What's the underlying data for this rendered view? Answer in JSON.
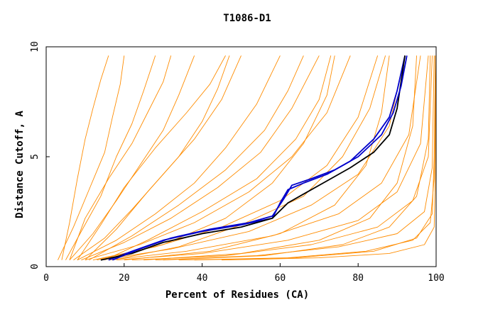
{
  "chart_data": {
    "type": "line",
    "title": "T1086-D1",
    "xlabel": "Percent of Residues (CA)",
    "ylabel": "Distance Cutoff, A",
    "xlim": [
      0,
      100
    ],
    "ylim": [
      0,
      10
    ],
    "x_ticks": [
      "0",
      "20",
      "40",
      "60",
      "80",
      "100"
    ],
    "y_ticks": [
      "0",
      "5",
      "10"
    ],
    "grid": false,
    "legend": "none",
    "colors": {
      "background_models": "#ff8c00",
      "highlight_blue": "#0000cc",
      "highlight_black": "#000000"
    },
    "series": [
      {
        "color": "#ff8c00",
        "x": [
          3,
          7,
          11,
          15,
          17,
          19,
          20
        ],
        "y": [
          0.3,
          1.8,
          3.5,
          5.2,
          6.8,
          8.3,
          9.6
        ]
      },
      {
        "color": "#ff8c00",
        "x": [
          5,
          9,
          14,
          18,
          22,
          25,
          28
        ],
        "y": [
          0.3,
          1.6,
          3.2,
          5.0,
          6.5,
          8.0,
          9.6
        ]
      },
      {
        "color": "#ff8c00",
        "x": [
          6,
          12,
          18,
          24,
          30,
          34,
          38
        ],
        "y": [
          0.3,
          1.5,
          3.0,
          4.6,
          6.2,
          7.8,
          9.6
        ]
      },
      {
        "color": "#ff8c00",
        "x": [
          7,
          15,
          22,
          30,
          38,
          45,
          50
        ],
        "y": [
          0.3,
          1.3,
          2.6,
          4.2,
          5.8,
          7.6,
          9.6
        ]
      },
      {
        "color": "#ff8c00",
        "x": [
          8,
          18,
          28,
          38,
          46,
          54,
          60
        ],
        "y": [
          0.3,
          1.2,
          2.4,
          3.8,
          5.4,
          7.4,
          9.6
        ]
      },
      {
        "color": "#ff8c00",
        "x": [
          9,
          20,
          32,
          44,
          55,
          63,
          70
        ],
        "y": [
          0.3,
          1.1,
          2.2,
          3.6,
          5.2,
          7.2,
          9.6
        ]
      },
      {
        "color": "#ff8c00",
        "x": [
          10,
          24,
          38,
          52,
          63,
          72,
          78
        ],
        "y": [
          0.3,
          1.0,
          2.0,
          3.4,
          5.0,
          7.0,
          9.6
        ]
      },
      {
        "color": "#ff8c00",
        "x": [
          12,
          28,
          45,
          60,
          72,
          80,
          85
        ],
        "y": [
          0.3,
          0.9,
          1.8,
          3.0,
          4.6,
          6.8,
          9.6
        ]
      },
      {
        "color": "#ff8c00",
        "x": [
          14,
          32,
          52,
          68,
          80,
          88,
          92
        ],
        "y": [
          0.3,
          0.8,
          1.6,
          2.8,
          4.2,
          6.4,
          9.6
        ]
      },
      {
        "color": "#ff8c00",
        "x": [
          16,
          36,
          58,
          75,
          86,
          93,
          96
        ],
        "y": [
          0.3,
          0.7,
          1.4,
          2.4,
          3.8,
          6.0,
          9.6
        ]
      },
      {
        "color": "#ff8c00",
        "x": [
          18,
          40,
          62,
          80,
          90,
          96,
          98
        ],
        "y": [
          0.3,
          0.6,
          1.2,
          2.1,
          3.4,
          5.6,
          9.6
        ]
      },
      {
        "color": "#ff8c00",
        "x": [
          22,
          46,
          68,
          85,
          94,
          98,
          99
        ],
        "y": [
          0.3,
          0.5,
          1.0,
          1.8,
          3.0,
          5.0,
          9.6
        ]
      },
      {
        "color": "#ff8c00",
        "x": [
          28,
          54,
          75,
          90,
          97,
          99,
          99.5
        ],
        "y": [
          0.3,
          0.5,
          0.9,
          1.5,
          2.5,
          4.5,
          9.6
        ]
      },
      {
        "color": "#ff8c00",
        "x": [
          34,
          62,
          82,
          94,
          98.5,
          99.5,
          100
        ],
        "y": [
          0.3,
          0.4,
          0.7,
          1.2,
          2.0,
          4.0,
          9.6
        ]
      },
      {
        "color": "#ff8c00",
        "x": [
          4,
          6,
          8,
          10,
          12,
          14,
          16
        ],
        "y": [
          0.3,
          2.0,
          4.0,
          5.8,
          7.2,
          8.5,
          9.6
        ]
      },
      {
        "color": "#ff8c00",
        "x": [
          6,
          10,
          16,
          22,
          26,
          30,
          32
        ],
        "y": [
          0.3,
          2.2,
          4.0,
          5.6,
          7.0,
          8.4,
          9.6
        ]
      },
      {
        "color": "#ff8c00",
        "x": [
          8,
          14,
          20,
          28,
          36,
          42,
          46
        ],
        "y": [
          0.3,
          1.9,
          3.6,
          5.4,
          7.0,
          8.3,
          9.6
        ]
      },
      {
        "color": "#ff8c00",
        "x": [
          11,
          22,
          34,
          46,
          56,
          62,
          66
        ],
        "y": [
          0.3,
          1.4,
          2.8,
          4.4,
          6.2,
          8.0,
          9.6
        ]
      },
      {
        "color": "#ff8c00",
        "x": [
          13,
          30,
          46,
          58,
          66,
          72,
          74
        ],
        "y": [
          0.3,
          1.0,
          2.2,
          3.8,
          5.6,
          7.8,
          9.6
        ]
      },
      {
        "color": "#ff8c00",
        "x": [
          20,
          42,
          60,
          74,
          82,
          86,
          88
        ],
        "y": [
          0.3,
          0.7,
          1.5,
          2.8,
          4.6,
          7.0,
          9.6
        ]
      },
      {
        "color": "#ff8c00",
        "x": [
          25,
          50,
          70,
          83,
          90,
          94,
          95
        ],
        "y": [
          0.3,
          0.6,
          1.2,
          2.2,
          3.8,
          6.4,
          9.6
        ]
      },
      {
        "color": "#ff8c00",
        "x": [
          30,
          56,
          76,
          88,
          95,
          98,
          98.5
        ],
        "y": [
          0.3,
          0.5,
          1.0,
          1.8,
          3.2,
          5.8,
          9.6
        ]
      },
      {
        "color": "#ff8c00",
        "x": [
          38,
          64,
          84,
          95,
          99,
          99.5,
          99.8
        ],
        "y": [
          0.3,
          0.4,
          0.7,
          1.3,
          2.4,
          5.0,
          9.6
        ]
      },
      {
        "color": "#ff8c00",
        "x": [
          45,
          70,
          88,
          97,
          99.5,
          99.8,
          100
        ],
        "y": [
          0.3,
          0.4,
          0.6,
          1.0,
          1.8,
          4.2,
          9.6
        ]
      },
      {
        "color": "#ff8c00",
        "x": [
          10,
          18,
          26,
          34,
          40,
          44,
          47
        ],
        "y": [
          0.3,
          1.7,
          3.4,
          5.0,
          6.6,
          8.1,
          9.6
        ]
      },
      {
        "color": "#ff8c00",
        "x": [
          15,
          26,
          40,
          54,
          64,
          70,
          73
        ],
        "y": [
          0.3,
          1.2,
          2.5,
          4.0,
          5.8,
          7.6,
          9.6
        ]
      },
      {
        "color": "#ff8c00",
        "x": [
          17,
          34,
          50,
          66,
          76,
          83,
          87
        ],
        "y": [
          0.3,
          0.9,
          1.9,
          3.2,
          5.0,
          7.2,
          9.6
        ]
      },
      {
        "color": "#0000cc",
        "x": [
          16,
          22,
          30,
          40,
          50,
          58,
          60,
          62,
          66,
          72,
          78,
          84,
          88,
          90,
          92
        ],
        "y": [
          0.3,
          0.7,
          1.2,
          1.6,
          1.9,
          2.2,
          2.9,
          3.5,
          3.8,
          4.2,
          4.8,
          5.8,
          6.8,
          8.0,
          9.6
        ]
      },
      {
        "color": "#000000",
        "x": [
          14,
          22,
          30,
          40,
          50,
          58,
          62,
          66,
          72,
          78,
          84,
          88,
          90,
          92
        ],
        "y": [
          0.3,
          0.6,
          1.1,
          1.5,
          1.8,
          2.2,
          2.9,
          3.3,
          3.9,
          4.5,
          5.2,
          6.0,
          7.2,
          9.6
        ]
      },
      {
        "color": "#0000cc",
        "x": [
          17,
          24,
          32,
          42,
          52,
          58,
          61,
          63,
          68,
          74,
          80,
          86,
          89,
          91,
          92.5
        ],
        "y": [
          0.3,
          0.8,
          1.3,
          1.7,
          2.0,
          2.3,
          3.1,
          3.7,
          4.0,
          4.4,
          5.0,
          6.0,
          7.0,
          8.2,
          9.6
        ]
      }
    ]
  }
}
